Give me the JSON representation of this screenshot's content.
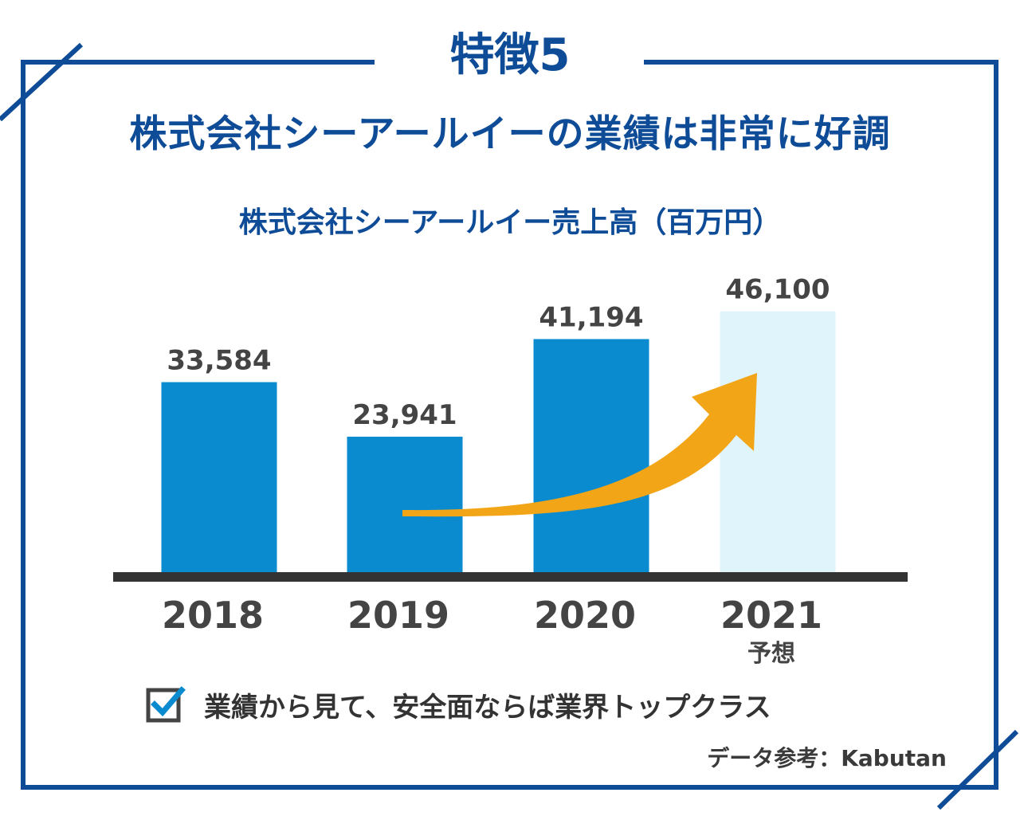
{
  "header": {
    "feature_label": "特徴5",
    "headline": "株式会社シーアールイーの業績は非常に好調"
  },
  "chart_data": {
    "type": "bar",
    "title": "株式会社シーアールイー売上高（百万円）",
    "categories": [
      "2018",
      "2019",
      "2020",
      "2021"
    ],
    "values": [
      33584,
      23941,
      41194,
      46100
    ],
    "value_labels": [
      "33,584",
      "23,941",
      "41,194",
      "46,100"
    ],
    "category_notes": [
      "",
      "",
      "",
      "予想"
    ],
    "forecast_index": 3,
    "ylim": [
      0,
      50000
    ],
    "grid": false,
    "colors": {
      "bar": "#0a8bcf",
      "forecast_bar": "#e0f4fc",
      "baseline": "#333333",
      "arrow": "#f2a516"
    },
    "annotation": "trend-arrow-up"
  },
  "footer": {
    "check_text": "業績から見て、安全面ならば業界トップクラス",
    "source": "データ参考：Kabutan"
  },
  "colors": {
    "frame": "#0f4c97",
    "title": "#0f4c97",
    "text": "#333333"
  },
  "icons": {
    "check": "checkbox-checked-icon"
  }
}
